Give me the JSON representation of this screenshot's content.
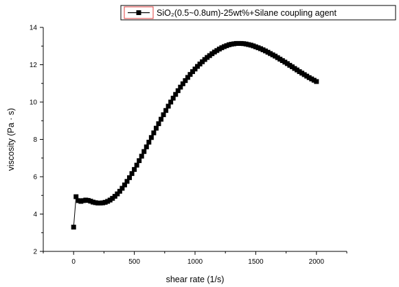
{
  "chart_data": {
    "type": "line",
    "markers": true,
    "xlabel": "shear rate (1/s)",
    "ylabel": "viscosity (Pa · s)",
    "xlim": [
      -250,
      2250
    ],
    "ylim": [
      2,
      14
    ],
    "xticks": [
      0,
      500,
      1000,
      1500,
      2000
    ],
    "xtick_labels": [
      "0",
      "500",
      "1000",
      "1500",
      "2000"
    ],
    "yticks": [
      2,
      4,
      6,
      8,
      10,
      12,
      14
    ],
    "ytick_labels": [
      "2",
      "4",
      "6",
      "8",
      "10",
      "12",
      "14"
    ],
    "grid": false,
    "legend_position": "top-right",
    "series": [
      {
        "name": "SiO₂(0.5~0.8um)-25wt%+Silane coupling agent",
        "color": "#000000",
        "x": [
          0,
          20,
          40,
          60,
          80,
          100,
          120,
          140,
          160,
          180,
          200,
          220,
          240,
          260,
          280,
          300,
          320,
          340,
          360,
          380,
          400,
          420,
          440,
          460,
          480,
          500,
          520,
          540,
          560,
          580,
          600,
          620,
          640,
          660,
          680,
          700,
          720,
          740,
          760,
          780,
          800,
          820,
          840,
          860,
          880,
          900,
          920,
          940,
          960,
          980,
          1000,
          1020,
          1040,
          1060,
          1080,
          1100,
          1120,
          1140,
          1160,
          1180,
          1200,
          1220,
          1240,
          1260,
          1280,
          1300,
          1320,
          1340,
          1360,
          1380,
          1400,
          1420,
          1440,
          1460,
          1480,
          1500,
          1520,
          1540,
          1560,
          1580,
          1600,
          1620,
          1640,
          1660,
          1680,
          1700,
          1720,
          1740,
          1760,
          1780,
          1800,
          1820,
          1840,
          1860,
          1880,
          1900,
          1920,
          1940,
          1960,
          1980,
          2000
        ],
        "y": [
          3.3,
          4.93,
          4.72,
          4.68,
          4.72,
          4.75,
          4.73,
          4.69,
          4.64,
          4.61,
          4.59,
          4.59,
          4.6,
          4.63,
          4.68,
          4.75,
          4.84,
          4.95,
          5.08,
          5.22,
          5.38,
          5.56,
          5.75,
          5.95,
          6.17,
          6.39,
          6.62,
          6.86,
          7.1,
          7.35,
          7.6,
          7.85,
          8.1,
          8.35,
          8.6,
          8.84,
          9.08,
          9.32,
          9.55,
          9.78,
          10.0,
          10.21,
          10.41,
          10.61,
          10.8,
          10.98,
          11.15,
          11.32,
          11.48,
          11.63,
          11.77,
          11.91,
          12.04,
          12.16,
          12.28,
          12.39,
          12.49,
          12.59,
          12.68,
          12.76,
          12.84,
          12.91,
          12.97,
          13.02,
          13.07,
          13.1,
          13.12,
          13.14,
          13.14,
          13.14,
          13.13,
          13.11,
          13.08,
          13.05,
          13.01,
          12.96,
          12.91,
          12.86,
          12.8,
          12.74,
          12.67,
          12.6,
          12.53,
          12.46,
          12.38,
          12.3,
          12.22,
          12.14,
          12.06,
          11.97,
          11.89,
          11.8,
          11.72,
          11.63,
          11.55,
          11.47,
          11.39,
          11.31,
          11.24,
          11.17,
          11.1
        ]
      }
    ]
  }
}
